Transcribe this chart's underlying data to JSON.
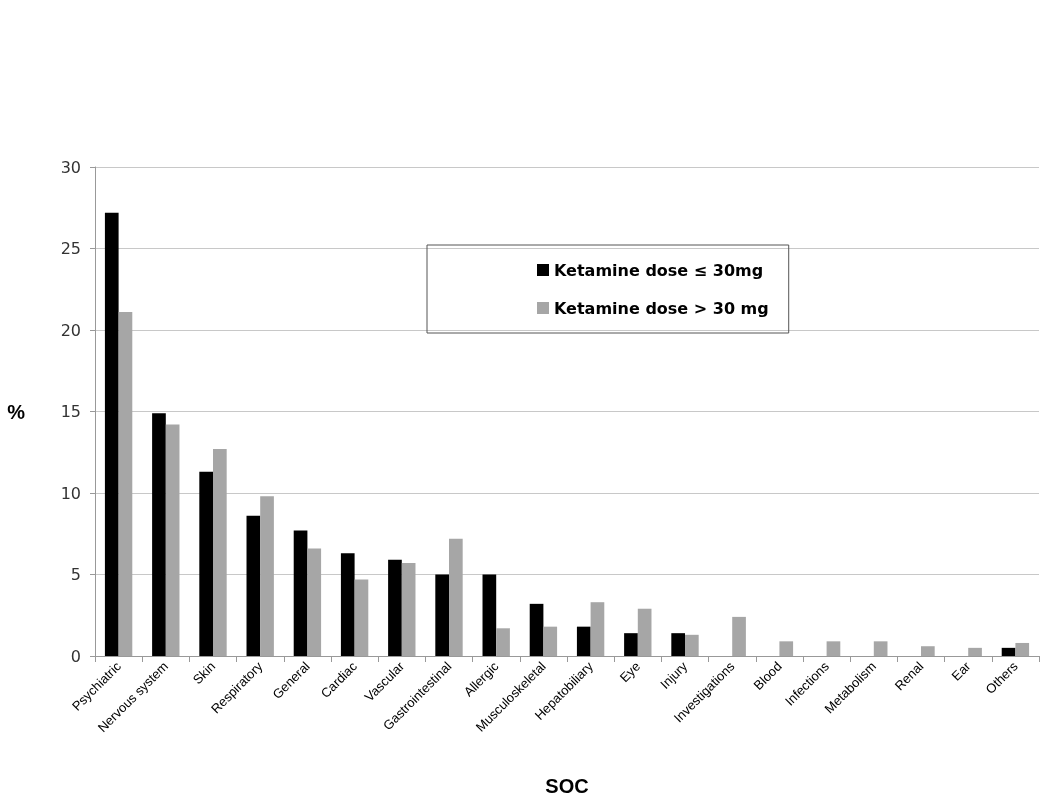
{
  "chart_data": {
    "type": "bar",
    "xlabel": "SOC",
    "ylabel": "%",
    "categories": [
      "Psychiatric",
      "Nervous system",
      "Skin",
      "Respiratory",
      "General",
      "Cardiac",
      "Vascular",
      "Gastrointestinal",
      "Allergic",
      "Musculoskeletal",
      "Hepatobiliary",
      "Eye",
      "Injury",
      "Investigations",
      "Blood",
      "Infections",
      "Metabolism",
      "Renal",
      "Ear",
      "Others"
    ],
    "series": [
      {
        "name": "Ketamine dose ≤ 30mg",
        "color": "#000000",
        "values": [
          27.2,
          14.9,
          11.3,
          8.6,
          7.7,
          6.3,
          5.9,
          5.0,
          5.0,
          3.2,
          1.8,
          1.4,
          1.4,
          0,
          0,
          0,
          0,
          0,
          0,
          0.5
        ]
      },
      {
        "name": "Ketamine dose > 30 mg",
        "color": "#a6a6a6",
        "values": [
          21.1,
          14.2,
          12.7,
          9.8,
          6.6,
          4.7,
          5.7,
          7.2,
          1.7,
          1.8,
          3.3,
          2.9,
          1.3,
          2.4,
          0.9,
          0.9,
          0.9,
          0.6,
          0.5,
          0.8
        ]
      }
    ],
    "ylim": [
      0,
      30
    ],
    "yticks": [
      0,
      5,
      10,
      15,
      20,
      25,
      30
    ],
    "grid": "y",
    "legend": "top right"
  }
}
